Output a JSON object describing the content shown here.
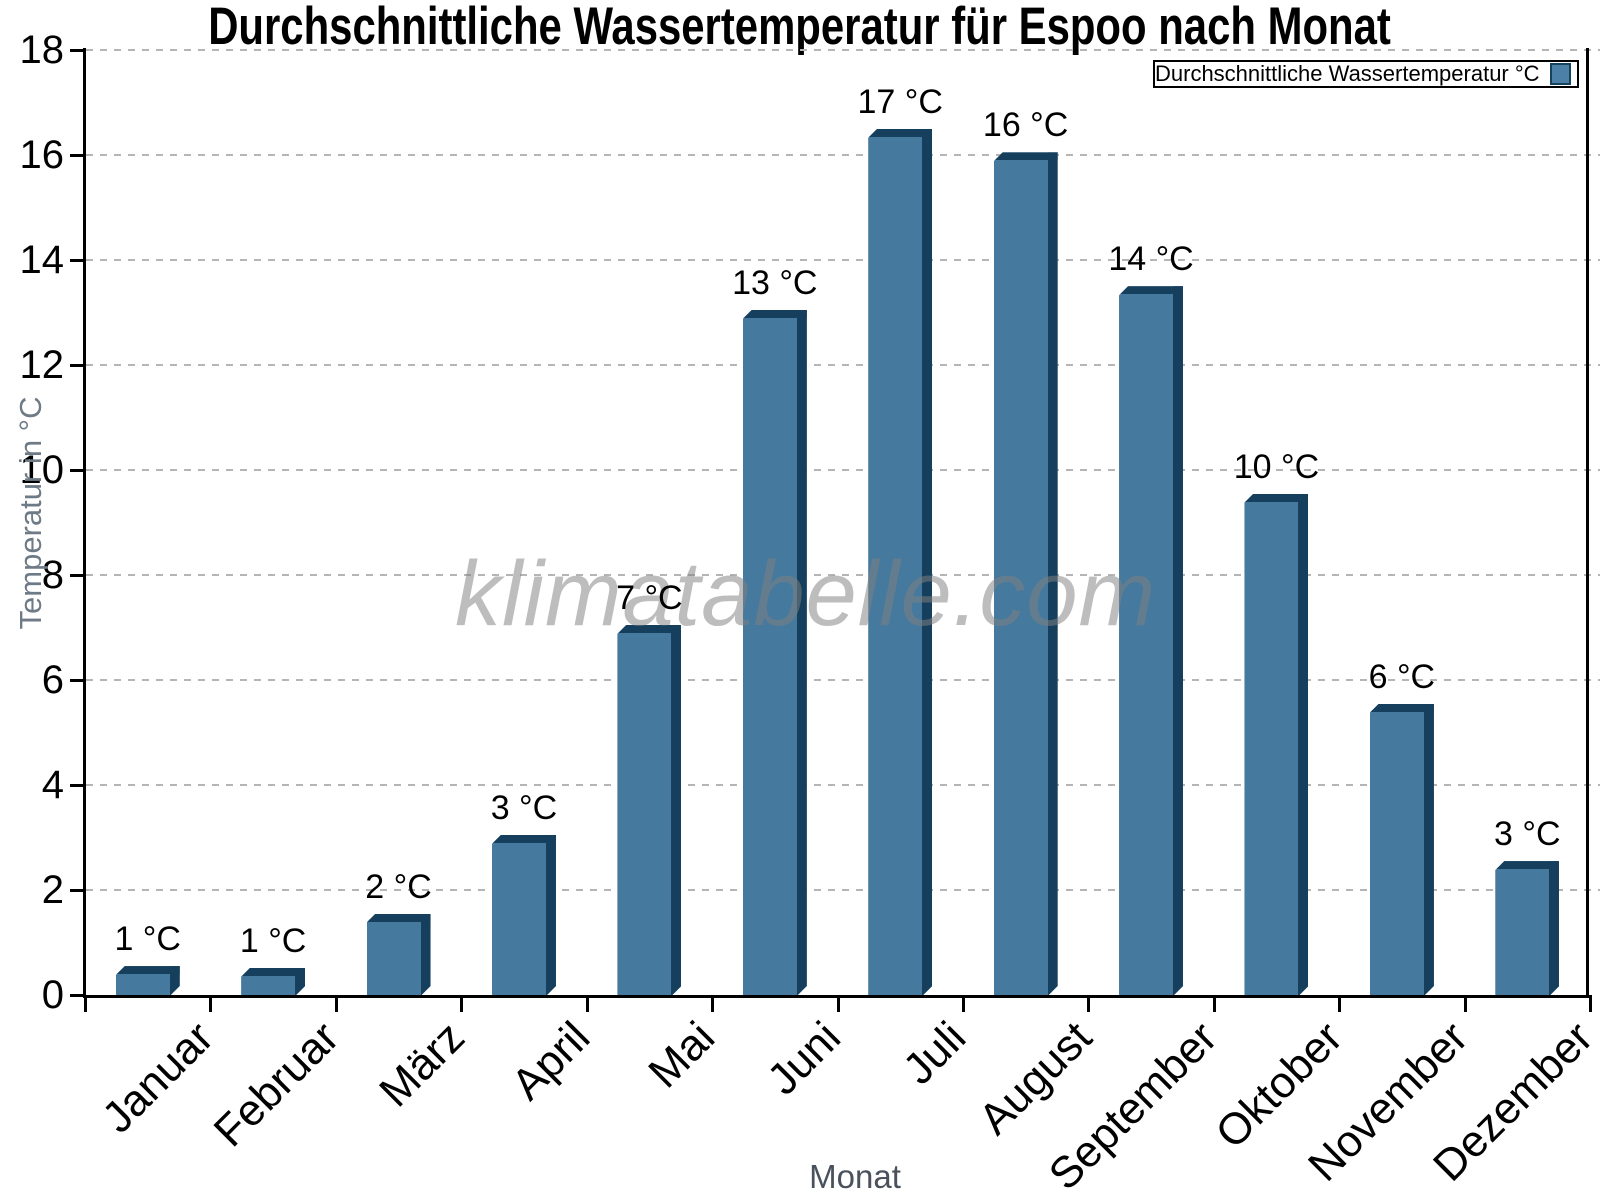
{
  "page": {
    "title": "Durchschnittliche Wassertemperatur für Espoo nach Monat",
    "watermark": "klimatabelle.com"
  },
  "legend": {
    "label": "Durchschnittliche Wassertemperatur °C"
  },
  "axes": {
    "y_title": "Temperatur in °C",
    "x_title": "Monat",
    "y_tick_labels": [
      "0",
      "2",
      "4",
      "6",
      "8",
      "10",
      "12",
      "14",
      "16",
      "18"
    ]
  },
  "colors": {
    "bar_face": "#45799e",
    "bar_shade": "#153f5c",
    "legend_swatch": "#4d80a6",
    "gridline": "#b5b5b5",
    "axis": "#000000",
    "axis_title_gray": "#6e7a86"
  },
  "chart_data": {
    "type": "bar",
    "title": "Durchschnittliche Wassertemperatur für Espoo nach Monat",
    "xlabel": "Monat",
    "ylabel": "Temperatur in °C",
    "categories": [
      "Januar",
      "Februar",
      "März",
      "April",
      "Mai",
      "Juni",
      "Juli",
      "August",
      "September",
      "Oktober",
      "November",
      "Dezember"
    ],
    "series": [
      {
        "name": "Durchschnittliche Wassertemperatur °C",
        "values": [
          0.55,
          0.52,
          1.55,
          3.05,
          7.05,
          13.05,
          16.5,
          16.05,
          13.5,
          9.55,
          5.55,
          2.55
        ],
        "point_labels": [
          "1 °C",
          "1 °C",
          "2 °C",
          "3 °C",
          "7 °C",
          "13 °C",
          "17 °C",
          "16 °C",
          "14 °C",
          "10 °C",
          "6 °C",
          "3 °C"
        ]
      }
    ],
    "ylim": [
      0,
      18
    ],
    "ytick_step": 2,
    "grid": "horizontal-dashed",
    "legend_position": "top-right",
    "bar_color": "#45799e",
    "bar_shadow_color": "#153f5c",
    "watermark": "klimatabelle.com"
  }
}
